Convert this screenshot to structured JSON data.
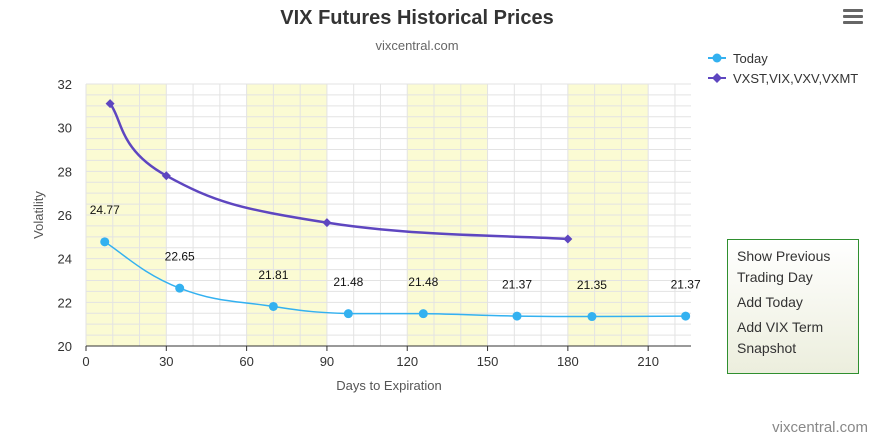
{
  "chart_data": {
    "type": "line",
    "title": "VIX Futures Historical Prices",
    "subtitle": "vixcentral.com",
    "xlabel": "Days to Expiration",
    "ylabel": "Volatility",
    "xlim": [
      0,
      226
    ],
    "ylim": [
      20,
      32
    ],
    "xticks": [
      0,
      30,
      60,
      90,
      120,
      150,
      180,
      210
    ],
    "yticks": [
      20,
      22,
      24,
      26,
      28,
      30,
      32
    ],
    "grid": true,
    "legend_position": "top-right",
    "series": [
      {
        "name": "Today",
        "color": "#33b1f0",
        "marker": "circle",
        "points": [
          {
            "x": 7,
            "y": 24.77,
            "label": "24.77"
          },
          {
            "x": 35,
            "y": 22.65,
            "label": "22.65"
          },
          {
            "x": 70,
            "y": 21.81,
            "label": "21.81"
          },
          {
            "x": 98,
            "y": 21.48,
            "label": "21.48"
          },
          {
            "x": 126,
            "y": 21.48,
            "label": "21.48"
          },
          {
            "x": 161,
            "y": 21.37,
            "label": "21.37"
          },
          {
            "x": 189,
            "y": 21.35,
            "label": "21.35"
          },
          {
            "x": 224,
            "y": 21.37,
            "label": "21.37"
          }
        ]
      },
      {
        "name": "VXST,VIX,VXV,VXMT",
        "color": "#5e46c0",
        "marker": "diamond",
        "points": [
          {
            "x": 9,
            "y": 31.1
          },
          {
            "x": 30,
            "y": 27.8
          },
          {
            "x": 90,
            "y": 25.65
          },
          {
            "x": 180,
            "y": 24.9
          }
        ]
      }
    ],
    "shaded_x_bands": [
      [
        0,
        30
      ],
      [
        60,
        90
      ],
      [
        120,
        150
      ],
      [
        180,
        210
      ]
    ],
    "band_color": "#fbfbd3",
    "credit": "vixcentral.com"
  },
  "menu": {
    "items": [
      "Show Previous Trading Day",
      "Add Today",
      "Add VIX Term Snapshot"
    ]
  },
  "export_menu": {
    "icon": "hamburger-menu-icon"
  }
}
